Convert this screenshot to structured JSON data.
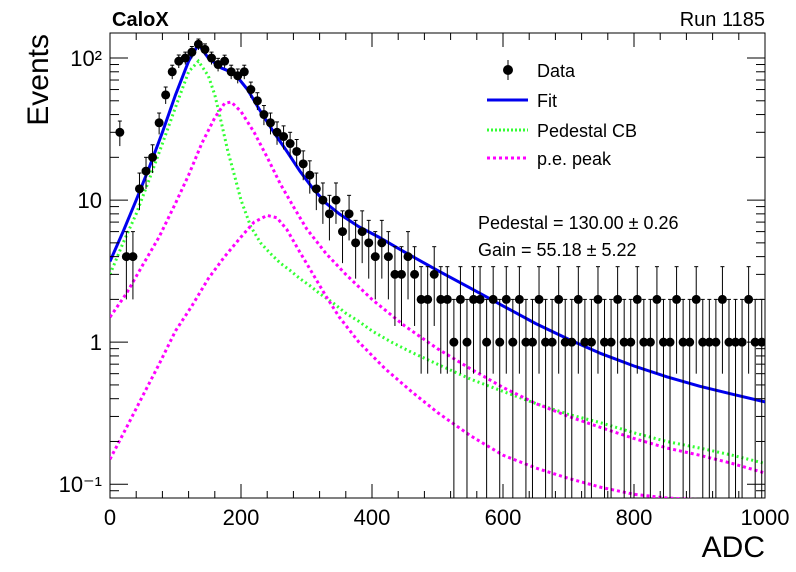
{
  "header": {
    "left": "CaloX",
    "right": "Run 1185"
  },
  "legend": [
    {
      "label": "Data",
      "style": "marker",
      "color": "#000000"
    },
    {
      "label": "Fit",
      "style": "solid",
      "color": "#0000ee"
    },
    {
      "label": "Pedestal CB",
      "style": "dotted",
      "color": "#33ff33"
    },
    {
      "label": "p.e. peak",
      "style": "dotted",
      "color": "#ff00ff"
    }
  ],
  "fit_text": {
    "pedestal": "Pedestal = 130.00 ± 0.26",
    "gain": "Gain = 55.18 ± 5.22"
  },
  "chart_data": {
    "type": "scatter",
    "title": "",
    "xlabel": "ADC",
    "ylabel": "Events",
    "xlim": [
      0,
      1000
    ],
    "ylim": [
      0.08,
      150
    ],
    "yscale": "log",
    "x_ticks": [
      0,
      200,
      400,
      600,
      800,
      1000
    ],
    "x_tick_labels": [
      "0",
      "200",
      "400",
      "600",
      "800",
      "1000"
    ],
    "y_ticks": [
      0.1,
      1,
      10,
      100
    ],
    "y_tick_labels": [
      "10⁻¹",
      "1",
      "10",
      "10²"
    ],
    "grid": false,
    "legend_position": "top-right",
    "series": [
      {
        "name": "Data",
        "kind": "points",
        "color": "#000000",
        "x": [
          15,
          25,
          35,
          45,
          55,
          65,
          75,
          85,
          95,
          105,
          115,
          125,
          135,
          145,
          155,
          165,
          175,
          185,
          195,
          205,
          215,
          225,
          235,
          245,
          255,
          265,
          275,
          285,
          295,
          305,
          315,
          325,
          335,
          345,
          355,
          365,
          375,
          385,
          395,
          405,
          415,
          425,
          435,
          445,
          455,
          465,
          475,
          485,
          495,
          505,
          515,
          525,
          535,
          545,
          555,
          565,
          575,
          585,
          595,
          605,
          615,
          625,
          635,
          645,
          655,
          665,
          675,
          685,
          695,
          705,
          715,
          725,
          735,
          745,
          755,
          765,
          775,
          785,
          795,
          805,
          815,
          825,
          835,
          845,
          855,
          865,
          875,
          885,
          895,
          905,
          915,
          925,
          935,
          945,
          955,
          965,
          975,
          985,
          995
        ],
        "y": [
          30,
          4,
          4,
          12,
          16,
          20,
          35,
          55,
          80,
          95,
          100,
          110,
          125,
          115,
          100,
          90,
          95,
          80,
          75,
          80,
          60,
          50,
          40,
          35,
          30,
          28,
          25,
          22,
          18,
          15,
          12,
          10,
          8,
          10,
          6,
          8,
          5,
          6,
          5,
          4,
          5,
          4,
          3,
          3,
          4,
          3,
          2,
          2,
          3,
          2,
          2,
          1,
          2,
          1,
          2,
          2,
          1,
          2,
          1,
          2,
          1,
          2,
          1,
          1,
          2,
          1,
          1,
          2,
          1,
          1,
          2,
          1,
          1,
          2,
          1,
          1,
          2,
          1,
          1,
          2,
          1,
          1,
          2,
          1,
          1,
          2,
          1,
          1,
          2,
          1,
          1,
          1,
          2,
          1,
          1,
          1,
          2,
          1,
          1
        ],
        "y_err": [
          6,
          2,
          2,
          3.5,
          4,
          4.5,
          6,
          7.5,
          9,
          10,
          10,
          10.5,
          11,
          10.7,
          10,
          9.5,
          9.7,
          9,
          8.7,
          9,
          7.7,
          7,
          6.3,
          6,
          5.5,
          5.3,
          5,
          4.7,
          4.2,
          3.9,
          3.5,
          3.2,
          2.8,
          3.2,
          2.4,
          2.8,
          2.2,
          2.4,
          2.2,
          2,
          2.2,
          2,
          1.7,
          1.7,
          2,
          1.7,
          1.4,
          1.4,
          1.7,
          1.4,
          1.4,
          1,
          1.4,
          1,
          1.4,
          1.4,
          1,
          1.4,
          1,
          1.4,
          1,
          1.4,
          1,
          1,
          1.4,
          1,
          1,
          1.4,
          1,
          1,
          1.4,
          1,
          1,
          1.4,
          1,
          1,
          1.4,
          1,
          1,
          1.4,
          1,
          1,
          1.4,
          1,
          1,
          1.4,
          1,
          1,
          1.4,
          1,
          1,
          1,
          1.4,
          1,
          1,
          1,
          1.4,
          1,
          1
        ]
      },
      {
        "name": "Fit",
        "kind": "line",
        "color": "#0000ee",
        "x": [
          0,
          20,
          40,
          60,
          80,
          100,
          120,
          135,
          150,
          170,
          190,
          210,
          230,
          250,
          270,
          290,
          310,
          330,
          350,
          380,
          410,
          450,
          500,
          550,
          600,
          650,
          700,
          750,
          800,
          850,
          900,
          950,
          1000
        ],
        "y": [
          3.7,
          6,
          10,
          17,
          30,
          55,
          95,
          125,
          100,
          85,
          78,
          60,
          42,
          30,
          22,
          16,
          12,
          9.5,
          8,
          6.5,
          5.5,
          4.3,
          3.2,
          2.4,
          1.8,
          1.35,
          1.05,
          0.83,
          0.68,
          0.57,
          0.49,
          0.43,
          0.38
        ]
      },
      {
        "name": "Pedestal CB",
        "kind": "line",
        "color": "#33ff33",
        "x": [
          0,
          20,
          40,
          60,
          80,
          100,
          120,
          135,
          150,
          160,
          170,
          180,
          190,
          200,
          215,
          230,
          245,
          260,
          275,
          290,
          305,
          320,
          340,
          360,
          380,
          400,
          430,
          460,
          500,
          550,
          600,
          650,
          700,
          750,
          800,
          850,
          900,
          950,
          1000
        ],
        "y": [
          3,
          5,
          8,
          14,
          25,
          45,
          80,
          95,
          75,
          55,
          35,
          22,
          15,
          10,
          6.5,
          5,
          4.2,
          3.6,
          3.2,
          2.8,
          2.5,
          2.2,
          1.9,
          1.6,
          1.4,
          1.2,
          1,
          0.85,
          0.7,
          0.55,
          0.45,
          0.37,
          0.31,
          0.27,
          0.23,
          0.2,
          0.18,
          0.16,
          0.14
        ]
      },
      {
        "name": "p.e. peak",
        "kind": "line",
        "color": "#ff00ff",
        "x": [
          0,
          25,
          50,
          75,
          100,
          120,
          140,
          160,
          175,
          185,
          200,
          220,
          240,
          260,
          280,
          300,
          330,
          360,
          400,
          450,
          500,
          550,
          600,
          650,
          700,
          750,
          800,
          850,
          900,
          950,
          1000
        ],
        "y": [
          1.5,
          2.2,
          3.5,
          5.5,
          9.5,
          15,
          25,
          38,
          48,
          49,
          42,
          30,
          20,
          13,
          9,
          6.3,
          4.2,
          3,
          2,
          1.3,
          0.9,
          0.65,
          0.48,
          0.37,
          0.3,
          0.25,
          0.21,
          0.18,
          0.16,
          0.14,
          0.12
        ]
      },
      {
        "name": "p.e. peak",
        "kind": "line",
        "color": "#ff00ff",
        "x": [
          0,
          25,
          50,
          75,
          100,
          125,
          150,
          175,
          200,
          220,
          240,
          255,
          270,
          290,
          310,
          330,
          350,
          380,
          420,
          460,
          500,
          550,
          600,
          650,
          700,
          750,
          800,
          850,
          900
        ],
        "y": [
          0.15,
          0.25,
          0.42,
          0.7,
          1.2,
          1.8,
          2.8,
          4,
          5.5,
          7,
          7.8,
          7.5,
          6.2,
          4.3,
          3,
          2.1,
          1.5,
          1,
          0.65,
          0.45,
          0.32,
          0.22,
          0.16,
          0.13,
          0.11,
          0.095,
          0.085,
          0.08,
          0.078
        ]
      }
    ]
  }
}
